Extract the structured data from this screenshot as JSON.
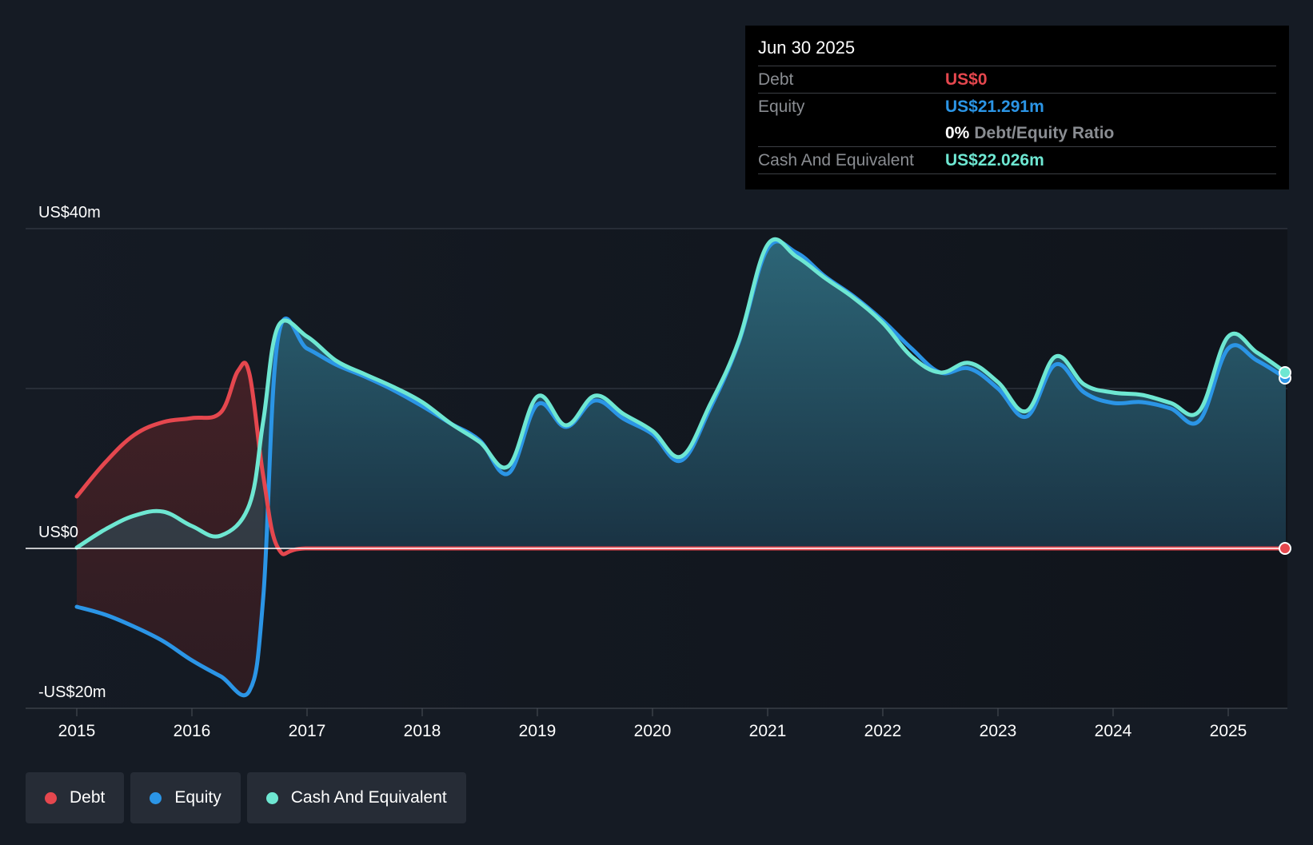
{
  "tooltip": {
    "date": "Jun 30 2025",
    "debt_label": "Debt",
    "debt_value": "US$0",
    "equity_label": "Equity",
    "equity_value": "US$21.291m",
    "ratio_value": "0%",
    "ratio_label": "Debt/Equity Ratio",
    "cash_label": "Cash And Equivalent",
    "cash_value": "US$22.026m"
  },
  "legend": [
    {
      "label": "Debt",
      "color": "#e5474e"
    },
    {
      "label": "Equity",
      "color": "#2b95e6"
    },
    {
      "label": "Cash And Equivalent",
      "color": "#6ee7d2"
    }
  ],
  "colors": {
    "background": "#151b24",
    "debt": "#e5474e",
    "equity": "#2b95e6",
    "cash": "#6ee7d2",
    "grid": "#3a414b"
  },
  "chart_data": {
    "type": "line",
    "title": "",
    "xlabel": "",
    "ylabel": "",
    "ylim": [
      -20,
      40
    ],
    "xlim": [
      2014.55,
      2025.55
    ],
    "y_ticks": [
      {
        "value": 40,
        "label": "US$40m"
      },
      {
        "value": 0,
        "label": "US$0"
      },
      {
        "value": -20,
        "label": "-US$20m"
      }
    ],
    "x_ticks": [
      {
        "value": 2015,
        "label": "2015"
      },
      {
        "value": 2016,
        "label": "2016"
      },
      {
        "value": 2017,
        "label": "2017"
      },
      {
        "value": 2018,
        "label": "2018"
      },
      {
        "value": 2019,
        "label": "2019"
      },
      {
        "value": 2020,
        "label": "2020"
      },
      {
        "value": 2021,
        "label": "2021"
      },
      {
        "value": 2022,
        "label": "2022"
      },
      {
        "value": 2023,
        "label": "2023"
      },
      {
        "value": 2024,
        "label": "2024"
      },
      {
        "value": 2025,
        "label": "2025"
      }
    ],
    "grid": true,
    "legend_position": "bottom-left",
    "series": [
      {
        "name": "Debt",
        "color": "#e5474e",
        "points": [
          [
            2015.0,
            6.5
          ],
          [
            2015.25,
            10.8
          ],
          [
            2015.5,
            14.2
          ],
          [
            2015.75,
            15.8
          ],
          [
            2016.0,
            16.3
          ],
          [
            2016.25,
            17.0
          ],
          [
            2016.4,
            22.2
          ],
          [
            2016.5,
            21.8
          ],
          [
            2016.62,
            9.0
          ],
          [
            2016.75,
            0
          ],
          [
            2017.0,
            0
          ],
          [
            2018.0,
            0
          ],
          [
            2019.0,
            0
          ],
          [
            2020.0,
            0
          ],
          [
            2021.0,
            0
          ],
          [
            2022.0,
            0
          ],
          [
            2023.0,
            0
          ],
          [
            2024.0,
            0
          ],
          [
            2025.0,
            0
          ],
          [
            2025.5,
            0
          ]
        ]
      },
      {
        "name": "Equity",
        "color": "#2b95e6",
        "points": [
          [
            2015.0,
            -7.3
          ],
          [
            2015.25,
            -8.3
          ],
          [
            2015.5,
            -9.8
          ],
          [
            2015.75,
            -11.6
          ],
          [
            2016.0,
            -14.0
          ],
          [
            2016.25,
            -16.0
          ],
          [
            2016.5,
            -17.8
          ],
          [
            2016.62,
            -6.0
          ],
          [
            2016.75,
            26.5
          ],
          [
            2017.0,
            25.0
          ],
          [
            2017.25,
            23.0
          ],
          [
            2017.5,
            21.5
          ],
          [
            2017.75,
            19.8
          ],
          [
            2018.0,
            17.8
          ],
          [
            2018.25,
            15.6
          ],
          [
            2018.5,
            13.5
          ],
          [
            2018.75,
            9.4
          ],
          [
            2019.0,
            18.0
          ],
          [
            2019.25,
            15.2
          ],
          [
            2019.5,
            18.5
          ],
          [
            2019.75,
            16.2
          ],
          [
            2020.0,
            14.3
          ],
          [
            2020.25,
            11.0
          ],
          [
            2020.5,
            17.5
          ],
          [
            2020.75,
            25.8
          ],
          [
            2021.0,
            37.5
          ],
          [
            2021.25,
            37.0
          ],
          [
            2021.5,
            34.0
          ],
          [
            2021.75,
            31.5
          ],
          [
            2022.0,
            28.5
          ],
          [
            2022.25,
            25.0
          ],
          [
            2022.5,
            22.0
          ],
          [
            2022.75,
            22.5
          ],
          [
            2023.0,
            20.0
          ],
          [
            2023.25,
            16.5
          ],
          [
            2023.5,
            23.0
          ],
          [
            2023.75,
            19.5
          ],
          [
            2024.0,
            18.2
          ],
          [
            2024.25,
            18.3
          ],
          [
            2024.5,
            17.5
          ],
          [
            2024.75,
            16.0
          ],
          [
            2025.0,
            25.0
          ],
          [
            2025.25,
            23.5
          ],
          [
            2025.5,
            21.3
          ]
        ]
      },
      {
        "name": "Cash And Equivalent",
        "color": "#6ee7d2",
        "points": [
          [
            2015.0,
            0.1
          ],
          [
            2015.25,
            2.4
          ],
          [
            2015.5,
            4.1
          ],
          [
            2015.75,
            4.6
          ],
          [
            2016.0,
            2.8
          ],
          [
            2016.25,
            1.6
          ],
          [
            2016.5,
            5.5
          ],
          [
            2016.62,
            16.0
          ],
          [
            2016.75,
            27.8
          ],
          [
            2017.0,
            26.5
          ],
          [
            2017.25,
            23.5
          ],
          [
            2017.5,
            21.8
          ],
          [
            2017.75,
            20.2
          ],
          [
            2018.0,
            18.3
          ],
          [
            2018.25,
            15.6
          ],
          [
            2018.5,
            13.3
          ],
          [
            2018.75,
            10.3
          ],
          [
            2019.0,
            19.0
          ],
          [
            2019.25,
            15.4
          ],
          [
            2019.5,
            19.1
          ],
          [
            2019.75,
            16.8
          ],
          [
            2020.0,
            14.7
          ],
          [
            2020.25,
            11.5
          ],
          [
            2020.5,
            18.0
          ],
          [
            2020.75,
            26.0
          ],
          [
            2021.0,
            38.0
          ],
          [
            2021.25,
            36.5
          ],
          [
            2021.5,
            33.8
          ],
          [
            2021.75,
            31.3
          ],
          [
            2022.0,
            28.2
          ],
          [
            2022.25,
            24.0
          ],
          [
            2022.5,
            22.0
          ],
          [
            2022.75,
            23.2
          ],
          [
            2023.0,
            20.8
          ],
          [
            2023.25,
            17.2
          ],
          [
            2023.5,
            24.0
          ],
          [
            2023.75,
            20.5
          ],
          [
            2024.0,
            19.5
          ],
          [
            2024.25,
            19.2
          ],
          [
            2024.5,
            18.2
          ],
          [
            2024.75,
            17.2
          ],
          [
            2025.0,
            26.5
          ],
          [
            2025.25,
            24.5
          ],
          [
            2025.5,
            22.0
          ]
        ]
      }
    ]
  }
}
